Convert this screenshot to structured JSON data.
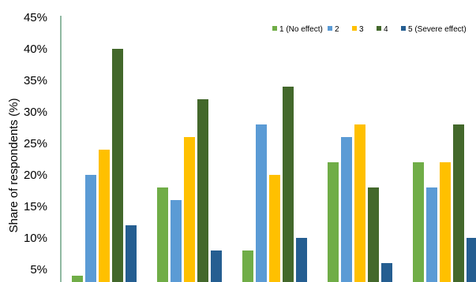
{
  "chart_data": {
    "type": "bar",
    "title": "",
    "xlabel": "",
    "ylabel": "Share of respondents (%)",
    "y_tick_labels": [
      "5%",
      "10%",
      "15%",
      "20%",
      "25%",
      "30%",
      "35%",
      "40%",
      "45%"
    ],
    "y_ticks": [
      5,
      10,
      15,
      20,
      25,
      30,
      35,
      40,
      45
    ],
    "ylim": [
      4,
      45
    ],
    "grid": false,
    "legend_position": "top-right",
    "group_count": 5,
    "series": [
      {
        "name": "1 (No effect)",
        "color": "#70ad47",
        "values": [
          4,
          18,
          8,
          22,
          22
        ]
      },
      {
        "name": "2",
        "color": "#5b9bd5",
        "values": [
          20,
          16,
          28,
          26,
          18
        ]
      },
      {
        "name": "3",
        "color": "#ffc000",
        "values": [
          24,
          26,
          20,
          28,
          22
        ]
      },
      {
        "name": "4",
        "color": "#43682b",
        "values": [
          40,
          32,
          34,
          18,
          28
        ]
      },
      {
        "name": "5 (Severe effect)",
        "color": "#255e91",
        "values": [
          12,
          8,
          10,
          6,
          10
        ]
      }
    ],
    "axis_color": "#217346"
  }
}
